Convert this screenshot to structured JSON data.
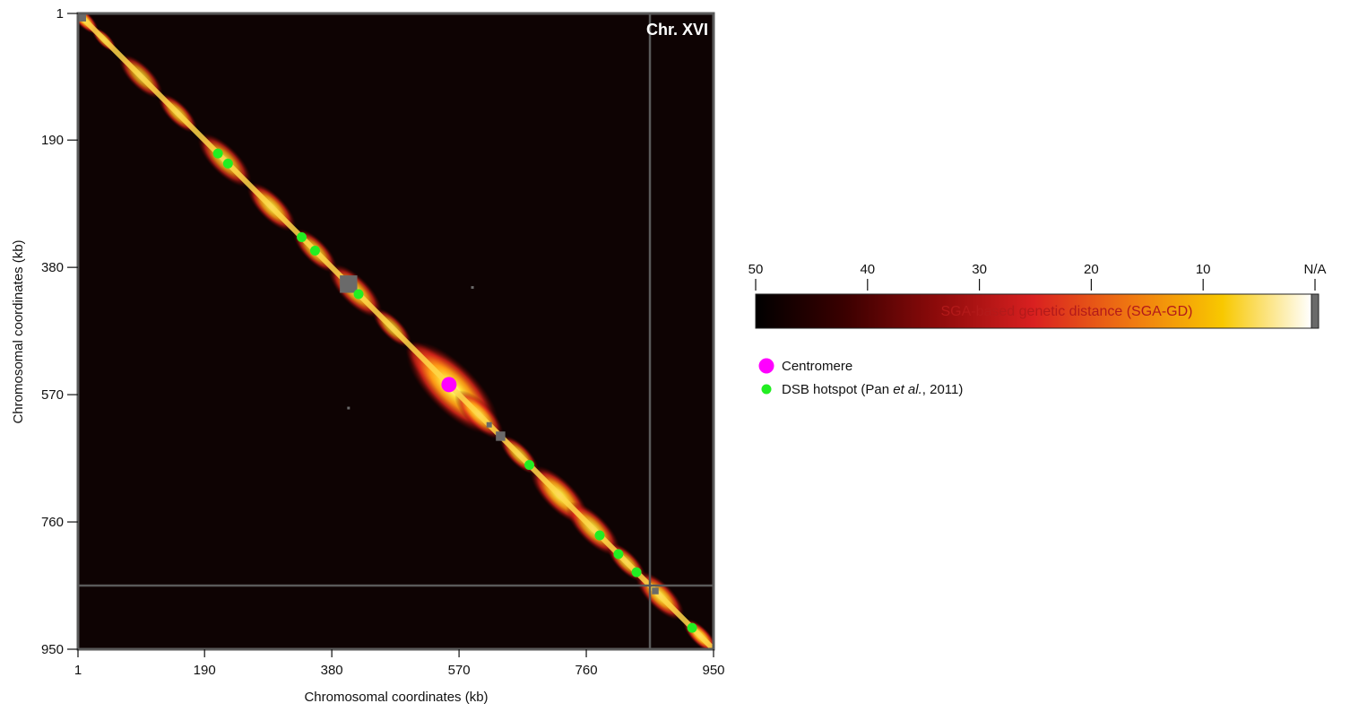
{
  "chart_data": {
    "type": "heatmap",
    "title": "Chr. XVI",
    "xlabel": "Chromosomal coordinates (kb)",
    "ylabel": "Chromosomal coordinates (kb)",
    "xlim": [
      1,
      950
    ],
    "ylim": [
      1,
      950
    ],
    "x_ticks": [
      "1",
      "190",
      "380",
      "570",
      "760",
      "950"
    ],
    "y_ticks": [
      "1",
      "190",
      "380",
      "570",
      "760",
      "950"
    ],
    "grid_lines_kb": [
      855
    ],
    "heat_blobs": [
      {
        "x": 10,
        "y": 10,
        "w": 12,
        "intensity": 1.0
      },
      {
        "x": 40,
        "y": 40,
        "w": 10,
        "intensity": 0.8
      },
      {
        "x": 95,
        "y": 95,
        "w": 18,
        "intensity": 0.8
      },
      {
        "x": 150,
        "y": 150,
        "w": 16,
        "intensity": 0.85
      },
      {
        "x": 220,
        "y": 220,
        "w": 22,
        "intensity": 0.85
      },
      {
        "x": 290,
        "y": 290,
        "w": 20,
        "intensity": 0.9
      },
      {
        "x": 355,
        "y": 355,
        "w": 18,
        "intensity": 0.85
      },
      {
        "x": 415,
        "y": 415,
        "w": 22,
        "intensity": 0.9
      },
      {
        "x": 470,
        "y": 470,
        "w": 16,
        "intensity": 0.8
      },
      {
        "x": 530,
        "y": 530,
        "w": 22,
        "intensity": 0.9
      },
      {
        "x": 560,
        "y": 560,
        "w": 38,
        "intensity": 1.0
      },
      {
        "x": 600,
        "y": 600,
        "w": 20,
        "intensity": 0.85
      },
      {
        "x": 660,
        "y": 660,
        "w": 16,
        "intensity": 0.85
      },
      {
        "x": 720,
        "y": 720,
        "w": 24,
        "intensity": 0.95
      },
      {
        "x": 770,
        "y": 770,
        "w": 22,
        "intensity": 0.9
      },
      {
        "x": 820,
        "y": 820,
        "w": 16,
        "intensity": 0.85
      },
      {
        "x": 870,
        "y": 870,
        "w": 20,
        "intensity": 0.95
      },
      {
        "x": 930,
        "y": 930,
        "w": 14,
        "intensity": 1.0
      }
    ],
    "na_blocks": [
      {
        "x": 7,
        "y": 7,
        "size": 12
      },
      {
        "x": 405,
        "y": 405,
        "size": 26
      },
      {
        "x": 632,
        "y": 632,
        "size": 14
      },
      {
        "x": 615,
        "y": 615,
        "size": 8
      },
      {
        "x": 863,
        "y": 863,
        "size": 10
      },
      {
        "x": 590,
        "y": 410,
        "size": 4
      },
      {
        "x": 405,
        "y": 590,
        "size": 4
      }
    ],
    "centromere": [
      {
        "x": 555,
        "y": 555
      }
    ],
    "dsb_hotspots": [
      {
        "x": 210,
        "y": 210
      },
      {
        "x": 225,
        "y": 225
      },
      {
        "x": 335,
        "y": 335
      },
      {
        "x": 355,
        "y": 355
      },
      {
        "x": 420,
        "y": 420
      },
      {
        "x": 675,
        "y": 675
      },
      {
        "x": 780,
        "y": 780
      },
      {
        "x": 808,
        "y": 808
      },
      {
        "x": 835,
        "y": 835
      },
      {
        "x": 918,
        "y": 918
      }
    ],
    "colorbar": {
      "label": "SGA-based genetic distance (SGA-GD)",
      "ticks": [
        "50",
        "40",
        "30",
        "20",
        "10",
        "N/A"
      ],
      "colors": [
        "#000000",
        "#3a0000",
        "#8a0a0a",
        "#d92020",
        "#f07a10",
        "#f8c800",
        "#ffffff"
      ],
      "na_color": "#6a6a6a"
    },
    "legend": [
      {
        "label_parts": [
          "Centromere"
        ],
        "color": "#ff00ff",
        "marker": "large-circle"
      },
      {
        "label_parts": [
          "DSB hotspot (Pan ",
          "et al.",
          ", 2011)"
        ],
        "color": "#22ee22",
        "marker": "small-circle"
      }
    ]
  }
}
